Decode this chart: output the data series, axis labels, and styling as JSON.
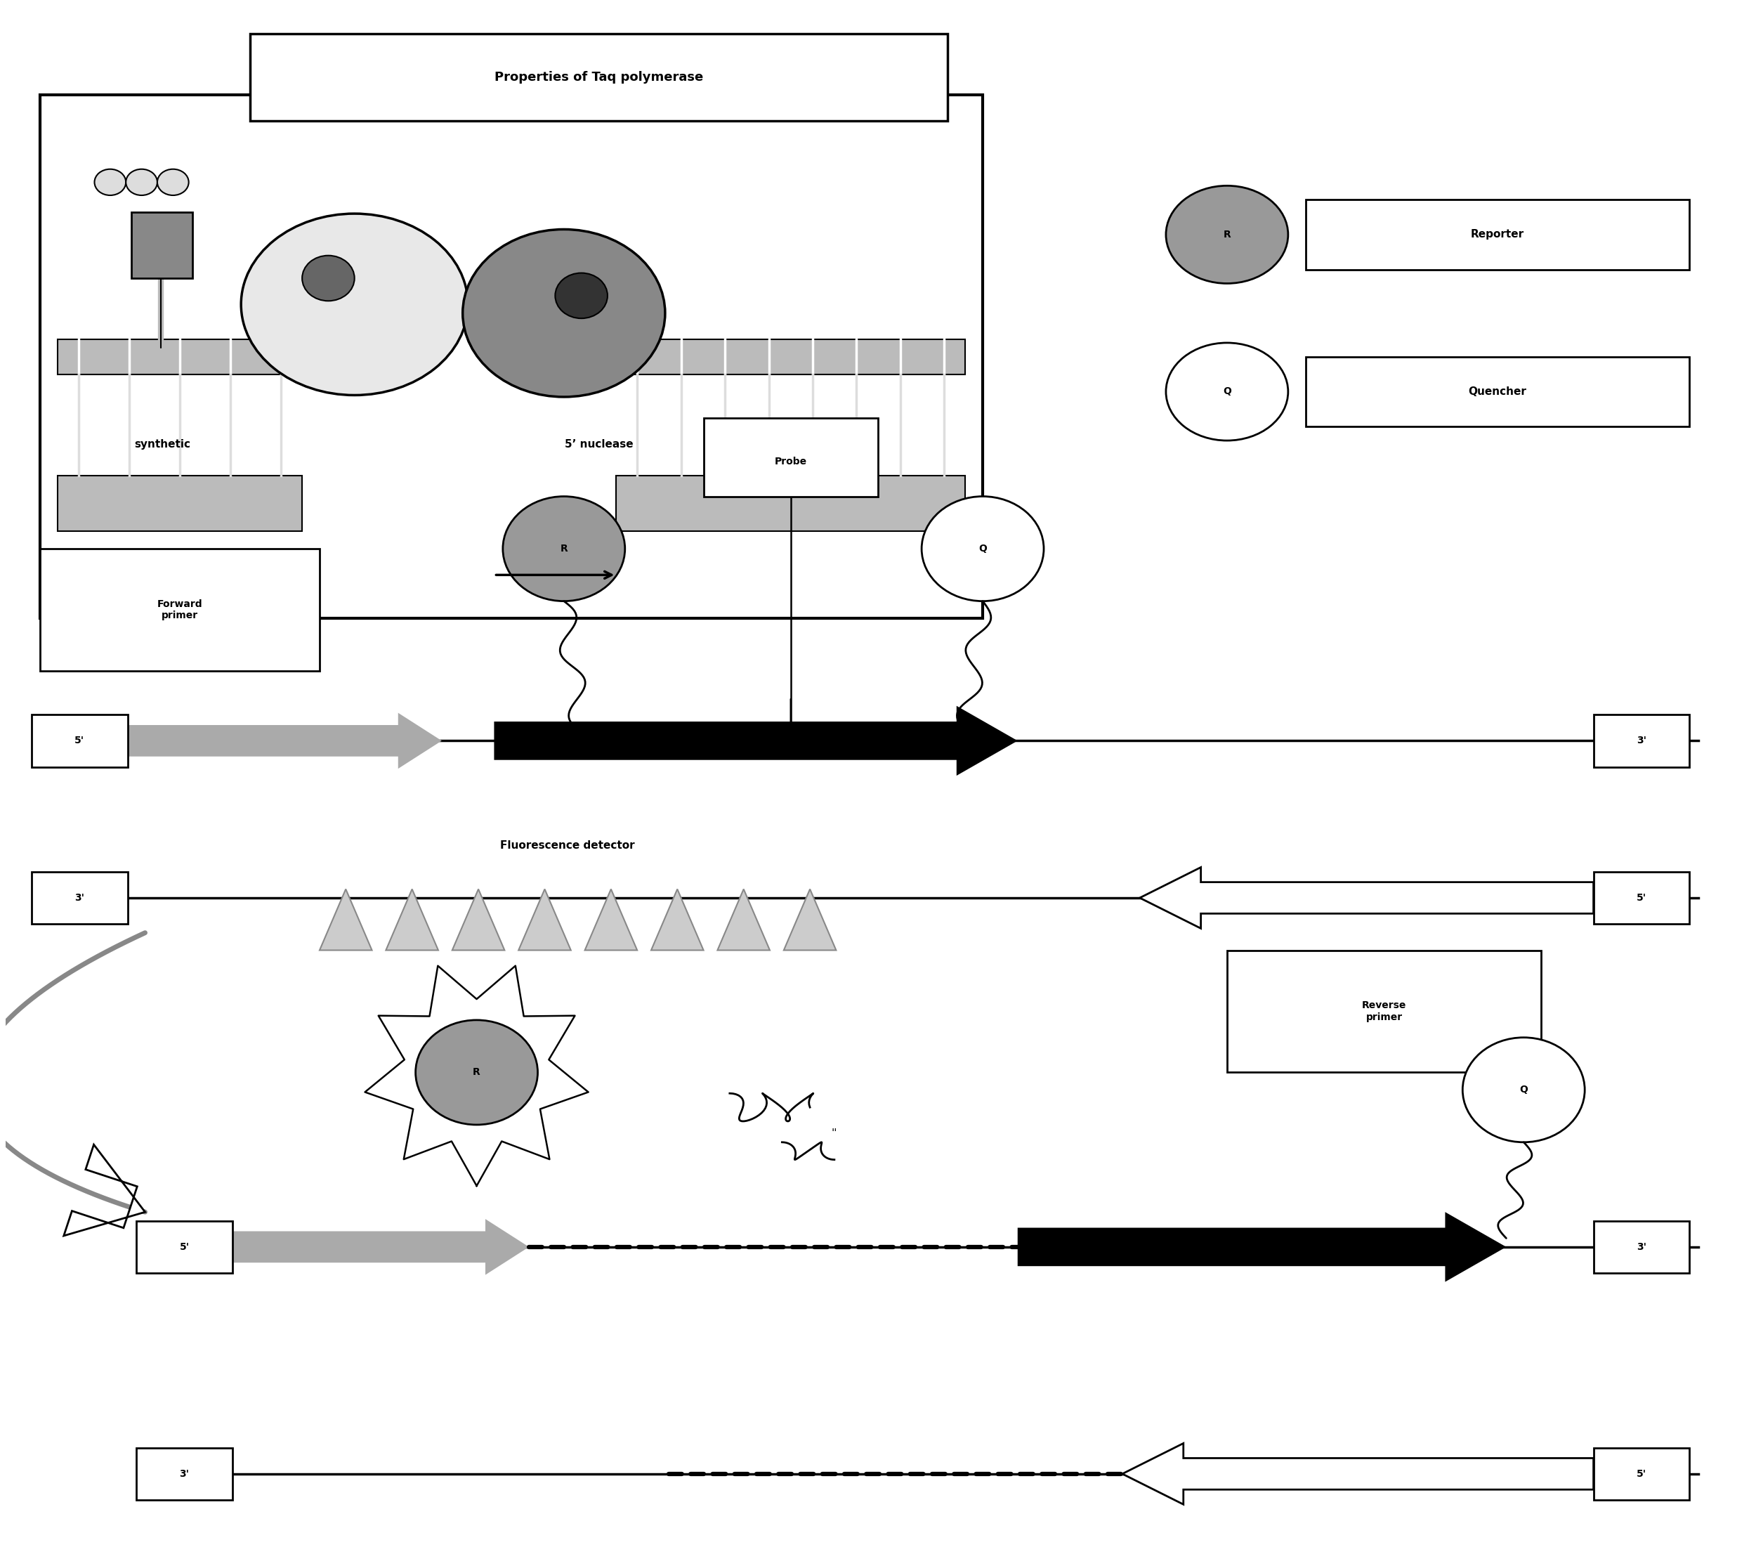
{
  "bg_color": "#ffffff",
  "inset_title": "Properties of Taq polymerase",
  "label_synthetic": "synthetic",
  "label_nuclease": "5’ nuclease",
  "label_probe": "Probe",
  "label_forward": "Forward\nprimer",
  "label_reverse": "Reverse\nprimer",
  "label_reporter": "Reporter",
  "label_quencher": "Quencher",
  "label_fluorescence": "Fluorescence detector",
  "label_R": "R",
  "label_Q": "Q",
  "gray_reporter": "#999999",
  "gray_synth_ellipse": "#e0e0e0",
  "gray_nuc_ellipse": "#888888",
  "gray_dna": "#aaaaaa",
  "gray_fwd_arrow": "#aaaaaa",
  "gray_curve_arrow": "#aaaaaa",
  "fig_w": 25.0,
  "fig_h": 22.29
}
